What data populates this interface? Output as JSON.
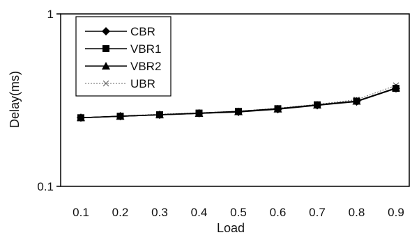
{
  "chart_data": {
    "type": "line",
    "title": "",
    "xlabel": "Load",
    "ylabel": "Delay(ms)",
    "y_scale": "log",
    "ylim": [
      0.1,
      1
    ],
    "y_ticks": [
      "1",
      "0.1"
    ],
    "x_ticks": [
      "0.1",
      "0.2",
      "0.3",
      "0.4",
      "0.5",
      "0.6",
      "0.7",
      "0.8",
      "0.9"
    ],
    "x": [
      0.1,
      0.2,
      0.3,
      0.4,
      0.5,
      0.6,
      0.7,
      0.8,
      0.9
    ],
    "legend_position": "top-left",
    "grid": false,
    "series": [
      {
        "name": "CBR",
        "marker": "diamond",
        "color": "#000000",
        "line_style": "solid",
        "values": [
          0.25,
          0.255,
          0.26,
          0.265,
          0.27,
          0.28,
          0.295,
          0.31,
          0.37
        ]
      },
      {
        "name": "VBR1",
        "marker": "square",
        "color": "#000000",
        "line_style": "solid",
        "values": [
          0.25,
          0.255,
          0.26,
          0.266,
          0.272,
          0.282,
          0.297,
          0.312,
          0.37
        ]
      },
      {
        "name": "VBR2",
        "marker": "triangle",
        "color": "#000000",
        "line_style": "solid",
        "values": [
          0.25,
          0.255,
          0.26,
          0.265,
          0.271,
          0.281,
          0.296,
          0.312,
          0.372
        ]
      },
      {
        "name": "UBR",
        "marker": "x",
        "color": "#666666",
        "line_style": "dotted",
        "values": [
          0.25,
          0.256,
          0.262,
          0.267,
          0.273,
          0.284,
          0.299,
          0.318,
          0.385
        ]
      }
    ]
  }
}
